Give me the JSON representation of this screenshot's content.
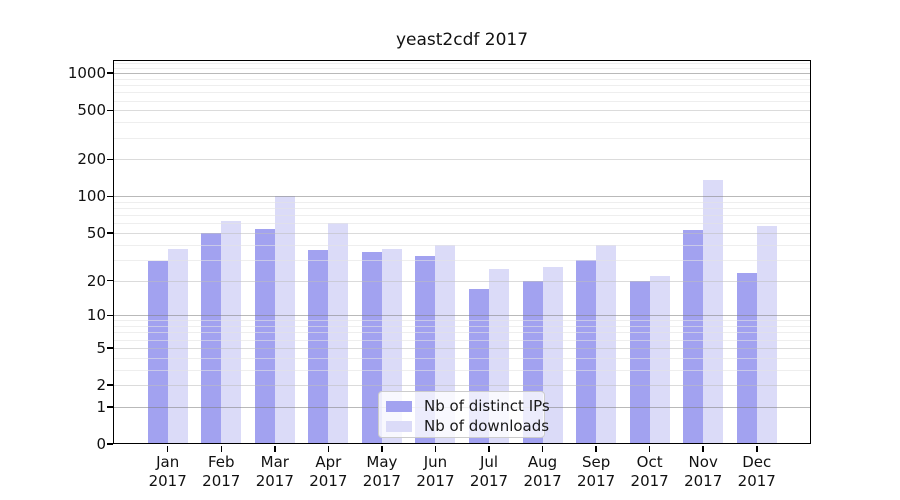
{
  "chart_data": {
    "type": "bar",
    "title": "yeast2cdf 2017",
    "categories": [
      "Jan",
      "Feb",
      "Mar",
      "Apr",
      "May",
      "Jun",
      "Jul",
      "Aug",
      "Sep",
      "Oct",
      "Nov",
      "Dec"
    ],
    "category_year": "2017",
    "series": [
      {
        "name": "Nb of distinct IPs",
        "key": "distinct-ips",
        "color": "#a2a2f0",
        "values": [
          29,
          50,
          54,
          36,
          35,
          32,
          17,
          20,
          30,
          20,
          53,
          23
        ]
      },
      {
        "name": "Nb of downloads",
        "key": "downloads",
        "color": "#dbdbf8",
        "values": [
          37,
          63,
          100,
          61,
          37,
          40,
          25,
          26,
          40,
          22,
          135,
          57
        ]
      }
    ],
    "y_scale": "log10(value+1)",
    "y_ticks": [
      0,
      1,
      2,
      5,
      10,
      20,
      50,
      100,
      200,
      500,
      1000
    ],
    "y_mid_gridlines": [
      2,
      5,
      20,
      50,
      200,
      500
    ],
    "y_minor_gridlines": [
      3,
      4,
      6,
      7,
      8,
      9,
      30,
      40,
      60,
      70,
      80,
      90,
      300,
      400,
      600,
      700,
      800,
      900,
      1100,
      1200
    ],
    "ylim": [
      0,
      1280
    ],
    "grid": true,
    "legend_position": "lower center inside",
    "colors": {
      "grid_decade": "#aaaaaa",
      "grid_mid": "#dcdcdc",
      "grid_minor": "#ececec",
      "axis": "#000000",
      "legend_border": "#cccccc",
      "background": "#ffffff"
    }
  }
}
